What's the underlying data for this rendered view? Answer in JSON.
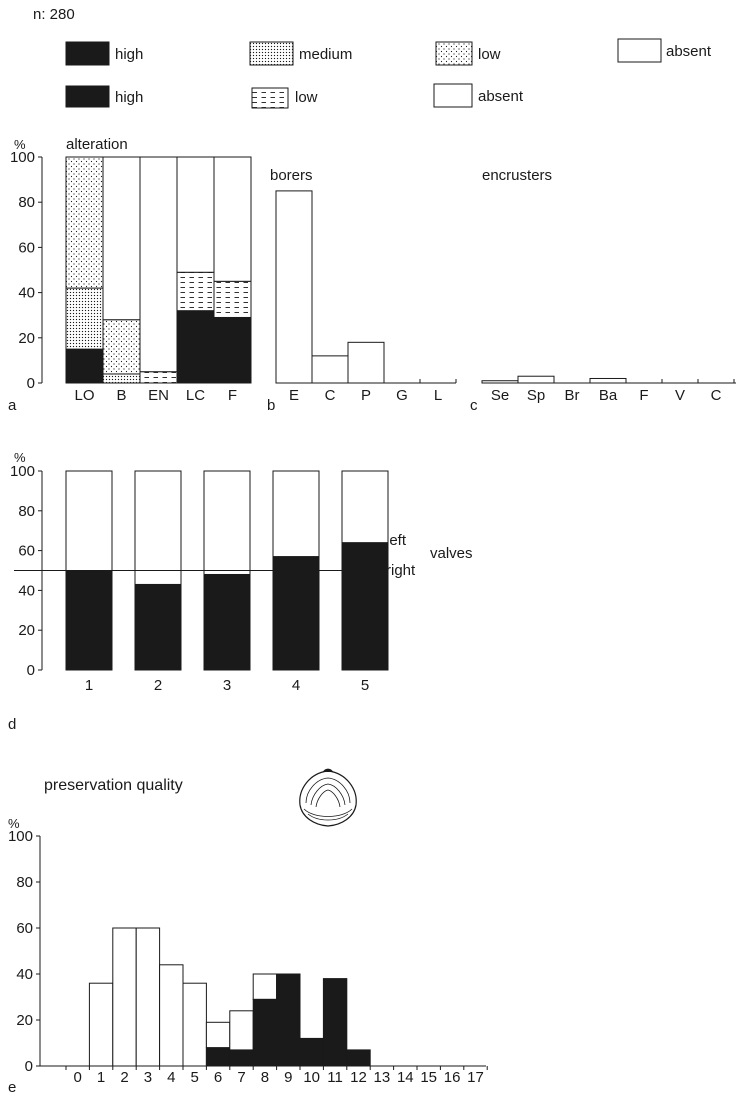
{
  "header": {
    "n_label": "n: 280"
  },
  "legend": {
    "row1": [
      {
        "label": "high",
        "pattern": "solid"
      },
      {
        "label": "medium",
        "pattern": "dots-dense"
      },
      {
        "label": "low",
        "pattern": "dots-sparse"
      },
      {
        "label": "absent",
        "pattern": "empty"
      }
    ],
    "row2": [
      {
        "label": "high",
        "pattern": "solid"
      },
      {
        "label": "low",
        "pattern": "dashes"
      },
      {
        "label": "absent",
        "pattern": "empty"
      }
    ]
  },
  "colors": {
    "ink": "#1a1a1a",
    "background": "#ffffff"
  },
  "icons": {
    "shell": "bivalve-shell-icon"
  },
  "chart_data": [
    {
      "id": "a",
      "panel_label": "a",
      "type": "bar",
      "stacked": true,
      "title": "alteration",
      "ylabel": "%",
      "ylim": [
        0,
        100
      ],
      "yticks": [
        "0",
        "20",
        "40",
        "60",
        "80",
        "100"
      ],
      "categories": [
        "LO",
        "B",
        "EN",
        "LC",
        "F"
      ],
      "series": [
        {
          "legend": "high",
          "pattern": "solid",
          "values": [
            15,
            0,
            0,
            32,
            29
          ]
        },
        {
          "legend": "medium",
          "pattern": "dots-dense",
          "values": [
            27,
            4,
            0,
            0,
            0
          ]
        },
        {
          "legend": "low",
          "pattern": "dots-sparse",
          "values": [
            58,
            24,
            0,
            0,
            0
          ]
        },
        {
          "legend": "low",
          "pattern": "dashes",
          "values": [
            0,
            0,
            5,
            17,
            16
          ]
        },
        {
          "legend": "absent",
          "pattern": "empty",
          "values": [
            0,
            72,
            95,
            51,
            55
          ]
        }
      ]
    },
    {
      "id": "b",
      "panel_label": "b",
      "type": "bar",
      "title": "borers",
      "ylim": [
        0,
        100
      ],
      "categories": [
        "E",
        "C",
        "P",
        "G",
        "L"
      ],
      "values": [
        85,
        12,
        18,
        0,
        0
      ]
    },
    {
      "id": "c",
      "panel_label": "c",
      "type": "bar",
      "title": "encrusters",
      "ylim": [
        0,
        100
      ],
      "categories": [
        "Se",
        "Sp",
        "Br",
        "Ba",
        "F",
        "V",
        "C"
      ],
      "values": [
        1,
        3,
        0,
        2,
        0,
        0,
        0
      ]
    },
    {
      "id": "d",
      "panel_label": "d",
      "type": "bar",
      "stacked": true,
      "ylabel": "%",
      "ylim": [
        0,
        100
      ],
      "yticks": [
        "0",
        "20",
        "40",
        "60",
        "80",
        "100"
      ],
      "categories": [
        "1",
        "2",
        "3",
        "4",
        "5"
      ],
      "reference_line": 50,
      "annotation_upper": "left",
      "annotation_lower": "right",
      "annotation_side": "valves",
      "series": [
        {
          "pattern": "solid",
          "values": [
            50,
            43,
            48,
            57,
            64
          ]
        },
        {
          "pattern": "empty",
          "values": [
            50,
            57,
            52,
            43,
            36
          ]
        }
      ]
    },
    {
      "id": "e",
      "panel_label": "e",
      "type": "bar",
      "stacked": true,
      "title": "preservation quality",
      "ylabel": "%",
      "ylim": [
        0,
        100
      ],
      "yticks": [
        "0",
        "20",
        "40",
        "60",
        "80",
        "100"
      ],
      "categories": [
        "0",
        "1",
        "2",
        "3",
        "4",
        "5",
        "6",
        "7",
        "8",
        "9",
        "10",
        "11",
        "12",
        "13",
        "14",
        "15",
        "16",
        "17"
      ],
      "series": [
        {
          "pattern": "solid",
          "values": [
            0,
            0,
            0,
            0,
            0,
            0,
            8,
            7,
            29,
            40,
            12,
            38,
            7,
            0,
            0,
            0,
            0,
            0
          ]
        },
        {
          "pattern": "empty",
          "values": [
            0,
            36,
            60,
            60,
            44,
            36,
            11,
            17,
            11,
            0,
            0,
            0,
            0,
            0,
            0,
            0,
            0,
            0
          ]
        }
      ]
    }
  ]
}
